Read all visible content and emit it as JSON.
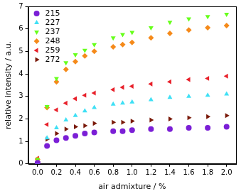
{
  "chart_data": {
    "type": "scatter",
    "x_label": "air admixture / %",
    "y_label": "relative intensity / a.u.",
    "x": [
      0,
      0.1,
      0.2,
      0.3,
      0.4,
      0.5,
      0.6,
      0.8,
      0.9,
      1.0,
      1.2,
      1.4,
      1.6,
      1.8,
      2.0
    ],
    "series": [
      {
        "name": "215",
        "color": "#7b1fd6",
        "marker": "circle",
        "values": [
          0.05,
          0.8,
          1.05,
          1.15,
          1.25,
          1.35,
          1.4,
          1.45,
          1.45,
          1.5,
          1.55,
          1.55,
          1.6,
          1.6,
          1.65
        ]
      },
      {
        "name": "227",
        "color": "#3fe0f5",
        "marker": "triangle-up",
        "values": [
          0.05,
          1.15,
          1.6,
          1.95,
          2.15,
          2.35,
          2.5,
          2.65,
          2.7,
          2.75,
          2.85,
          2.95,
          3.0,
          3.05,
          3.1
        ]
      },
      {
        "name": "237",
        "color": "#66ff1a",
        "marker": "triangle-down",
        "values": [
          0.2,
          2.55,
          3.8,
          4.5,
          4.85,
          5.05,
          5.3,
          5.6,
          5.75,
          5.85,
          6.05,
          6.3,
          6.45,
          6.55,
          6.65
        ]
      },
      {
        "name": "248",
        "color": "#f58a1a",
        "marker": "diamond",
        "values": [
          0.2,
          2.5,
          3.65,
          4.2,
          4.55,
          4.8,
          5.0,
          5.2,
          5.3,
          5.4,
          5.6,
          5.8,
          5.95,
          6.05,
          6.15
        ]
      },
      {
        "name": "259",
        "color": "#e8202a",
        "marker": "triangle-left",
        "values": [
          0.25,
          1.75,
          2.4,
          2.7,
          2.9,
          3.05,
          3.15,
          3.3,
          3.4,
          3.45,
          3.55,
          3.65,
          3.75,
          3.8,
          3.9
        ]
      },
      {
        "name": "272",
        "color": "#7a1a0a",
        "marker": "triangle-right",
        "values": [
          0.1,
          1.1,
          1.35,
          1.55,
          1.65,
          1.7,
          1.8,
          1.85,
          1.85,
          1.9,
          1.95,
          2.0,
          2.05,
          2.1,
          2.15
        ]
      }
    ],
    "xlim": [
      -0.1,
      2.1
    ],
    "xticks": [
      {
        "value": 0,
        "label": "0.0"
      },
      0.2,
      0.4,
      0.6,
      0.8,
      {
        "value": 1,
        "label": "1.0"
      },
      1.2,
      1.4,
      1.6,
      1.8,
      {
        "value": 2,
        "label": "2.0"
      }
    ],
    "ylim": [
      0,
      7
    ],
    "yticks": [
      0,
      1,
      2,
      3,
      4,
      5,
      6,
      7
    ],
    "grid": false,
    "legend": "upper left"
  }
}
